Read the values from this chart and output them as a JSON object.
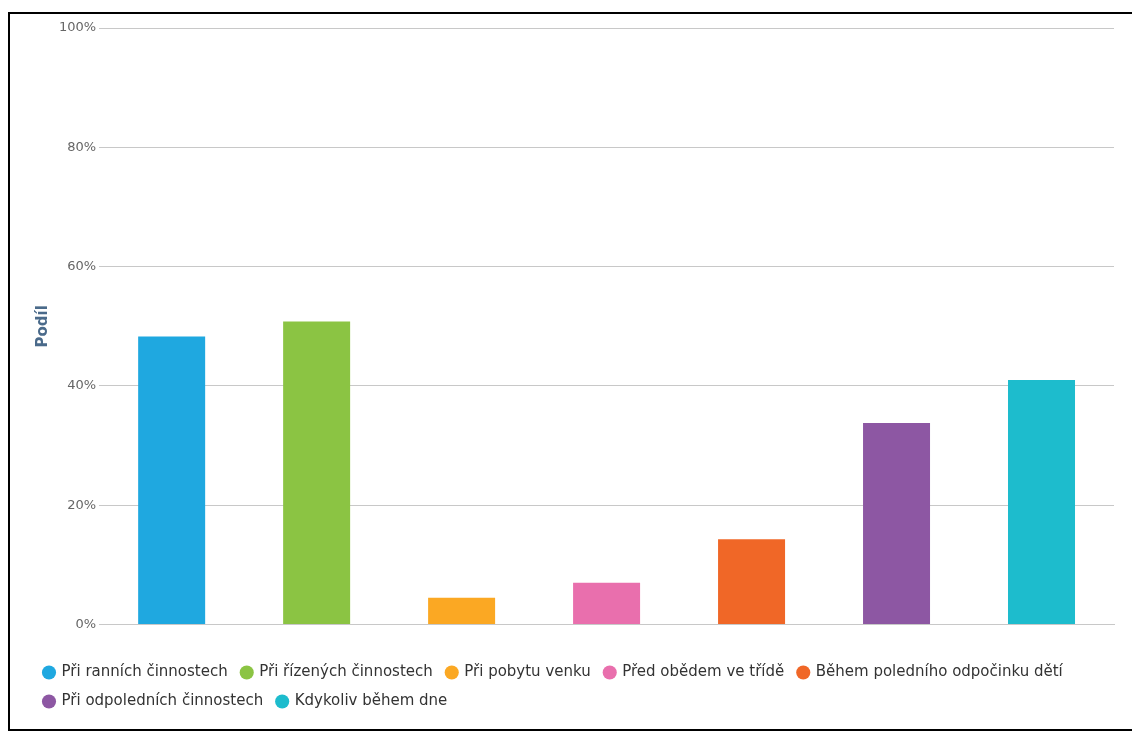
{
  "chart_data": {
    "type": "bar",
    "ylabel": "Podíl",
    "categories": [
      null,
      null,
      null,
      null,
      null,
      null,
      null
    ],
    "series": [
      {
        "name": "Při ranních činnostech",
        "color": "#1fa8e0",
        "values": [
          48.3,
          null,
          null,
          null,
          null,
          null,
          null
        ]
      },
      {
        "name": "Při řízených činnostech",
        "color": "#8bc443",
        "values": [
          null,
          50.8,
          null,
          null,
          null,
          null,
          null
        ]
      },
      {
        "name": "Při pobytu venku",
        "color": "#fba823",
        "values": [
          null,
          null,
          4.5,
          null,
          null,
          null,
          null
        ]
      },
      {
        "name": "Před obědem ve třídě",
        "color": "#e96fad",
        "values": [
          null,
          null,
          null,
          7.0,
          null,
          null,
          null
        ]
      },
      {
        "name": "Během poledního odpočinku dětí",
        "color": "#f06727",
        "values": [
          null,
          null,
          null,
          null,
          14.3,
          null,
          null
        ]
      },
      {
        "name": "Při odpoledních činnostech",
        "color": "#8d57a3",
        "values": [
          null,
          null,
          null,
          null,
          null,
          33.8,
          null
        ]
      },
      {
        "name": "Kdykoliv během dne",
        "color": "#1dbccd",
        "values": [
          null,
          null,
          null,
          null,
          null,
          null,
          41.0
        ]
      }
    ],
    "ylim": [
      0,
      100
    ],
    "yticks": [
      {
        "value": 0,
        "label": "0%"
      },
      {
        "value": 20,
        "label": "20%"
      },
      {
        "value": 40,
        "label": "40%"
      },
      {
        "value": 60,
        "label": "60%"
      },
      {
        "value": 80,
        "label": "80%"
      },
      {
        "value": 100,
        "label": "100%"
      }
    ],
    "grid": "y",
    "legend": "bottom"
  }
}
